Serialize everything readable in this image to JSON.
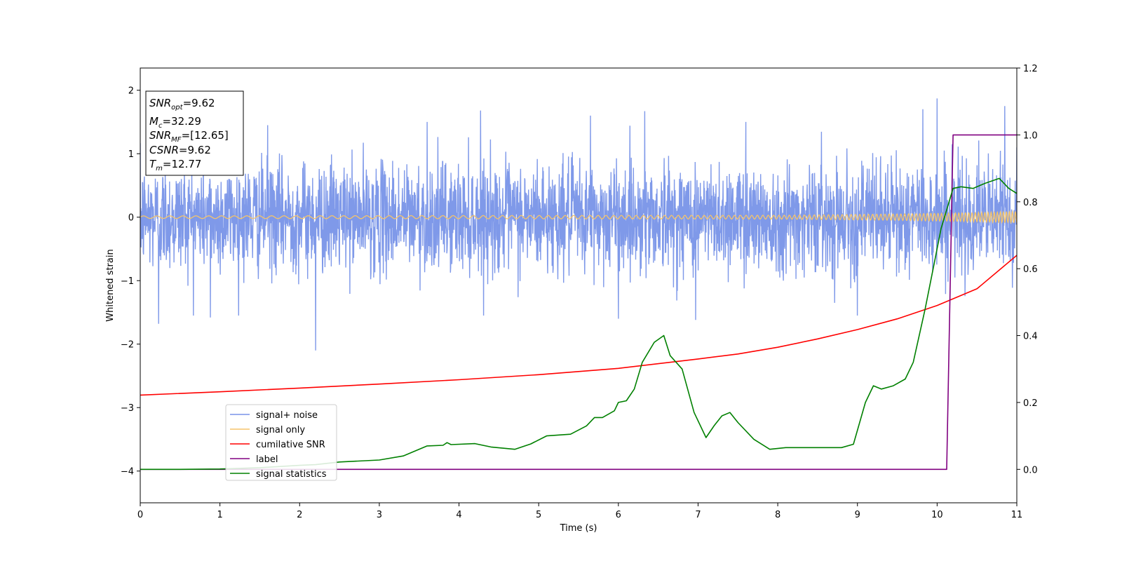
{
  "chart_data": {
    "type": "line",
    "xlabel": "Time (s)",
    "ylabel": "Whitened strain",
    "xlim": [
      0,
      11
    ],
    "ylim": [
      -4.5,
      2.35
    ],
    "y2lim": [
      -0.1,
      1.2
    ],
    "xticks": [
      0,
      1,
      2,
      3,
      4,
      5,
      6,
      7,
      8,
      9,
      10,
      11
    ],
    "yticks": [
      -4,
      -3,
      -2,
      -1,
      0,
      1,
      2
    ],
    "y2ticks": [
      0.0,
      0.2,
      0.4,
      0.6,
      0.8,
      1.0,
      1.2
    ],
    "xtick_labels": [
      "0",
      "1",
      "2",
      "3",
      "4",
      "5",
      "6",
      "7",
      "8",
      "9",
      "10",
      "11"
    ],
    "ytick_labels": [
      "−4",
      "−3",
      "−2",
      "−1",
      "0",
      "1",
      "2"
    ],
    "y2tick_labels": [
      "0.0",
      "0.2",
      "0.4",
      "0.6",
      "0.8",
      "1.0",
      "1.2"
    ],
    "grid": false,
    "legend_position": "lower-left",
    "annotation": {
      "snr_opt_base": "SNR",
      "snr_opt_sub": "opt",
      "snr_opt_value": "=9.62",
      "mc_base": "M",
      "mc_sub": "c",
      "mc_value": "=32.29",
      "snr_mf_base": "SNR",
      "snr_mf_sub": "MF",
      "snr_mf_value": "=[12.65]",
      "csnr_base": "CSNR",
      "csnr_value": "=9.62",
      "tm_base": "T",
      "tm_sub": "m",
      "tm_value": "=12.77"
    },
    "series": [
      {
        "name": "signal+ noise",
        "color": "#7894e8",
        "axis": "left",
        "noise_sigma": 0.42,
        "peaks": [
          [
            2.2,
            -2.1
          ],
          [
            0.23,
            -1.68
          ],
          [
            0.88,
            -1.58
          ],
          [
            1.6,
            1.45
          ],
          [
            3.6,
            1.5
          ],
          [
            4.27,
            1.68
          ],
          [
            5.65,
            1.6
          ],
          [
            6.33,
            1.67
          ],
          [
            6.97,
            -1.62
          ],
          [
            7.6,
            1.5
          ],
          [
            9.82,
            1.7
          ],
          [
            10.0,
            1.87
          ],
          [
            10.19,
            1.15
          ],
          [
            10.85,
            1.75
          ],
          [
            11.0,
            1.1
          ],
          [
            9.0,
            -1.55
          ],
          [
            6.0,
            -1.6
          ]
        ]
      },
      {
        "name": "signal only",
        "color": "#f5c46a",
        "axis": "left",
        "amplitude": [
          [
            0,
            0.02
          ],
          [
            8,
            0.03
          ],
          [
            9.5,
            0.05
          ],
          [
            10.4,
            0.07
          ],
          [
            11,
            0.09
          ]
        ]
      },
      {
        "name": "cumilative SNR",
        "color": "#ff0000",
        "axis": "right",
        "x": [
          0,
          1,
          2,
          3,
          4,
          5,
          6,
          7,
          7.5,
          8,
          8.5,
          9,
          9.5,
          10,
          10.5,
          11
        ],
        "y": [
          0.222,
          0.232,
          0.243,
          0.255,
          0.268,
          0.283,
          0.302,
          0.33,
          0.345,
          0.365,
          0.39,
          0.418,
          0.45,
          0.49,
          0.54,
          0.64
        ]
      },
      {
        "name": "label",
        "color": "#800080",
        "axis": "right",
        "x": [
          0,
          10.12,
          10.2,
          11
        ],
        "y": [
          0.0,
          0.0,
          1.0,
          1.0
        ]
      },
      {
        "name": "signal statistics",
        "color": "#008000",
        "axis": "right",
        "x": [
          0,
          0.5,
          1.0,
          1.5,
          2.0,
          2.2,
          2.5,
          3.0,
          3.3,
          3.6,
          3.8,
          3.85,
          3.9,
          4.2,
          4.4,
          4.7,
          4.9,
          5.1,
          5.4,
          5.6,
          5.7,
          5.8,
          5.95,
          6.0,
          6.1,
          6.2,
          6.3,
          6.45,
          6.57,
          6.65,
          6.8,
          6.95,
          7.1,
          7.2,
          7.3,
          7.4,
          7.5,
          7.7,
          7.9,
          8.1,
          8.4,
          8.6,
          8.8,
          8.95,
          9.1,
          9.2,
          9.3,
          9.45,
          9.6,
          9.7,
          9.85,
          9.95,
          10.05,
          10.2,
          10.3,
          10.45,
          10.6,
          10.78,
          10.9,
          11.0
        ],
        "y": [
          0.0,
          0.0,
          0.001,
          0.005,
          0.012,
          0.014,
          0.022,
          0.028,
          0.04,
          0.07,
          0.072,
          0.08,
          0.074,
          0.077,
          0.067,
          0.06,
          0.076,
          0.1,
          0.105,
          0.13,
          0.155,
          0.155,
          0.175,
          0.2,
          0.205,
          0.24,
          0.32,
          0.38,
          0.4,
          0.34,
          0.3,
          0.17,
          0.095,
          0.13,
          0.16,
          0.17,
          0.14,
          0.09,
          0.06,
          0.065,
          0.065,
          0.065,
          0.065,
          0.075,
          0.2,
          0.25,
          0.24,
          0.25,
          0.27,
          0.32,
          0.48,
          0.6,
          0.72,
          0.84,
          0.845,
          0.84,
          0.855,
          0.87,
          0.84,
          0.825
        ]
      }
    ]
  }
}
